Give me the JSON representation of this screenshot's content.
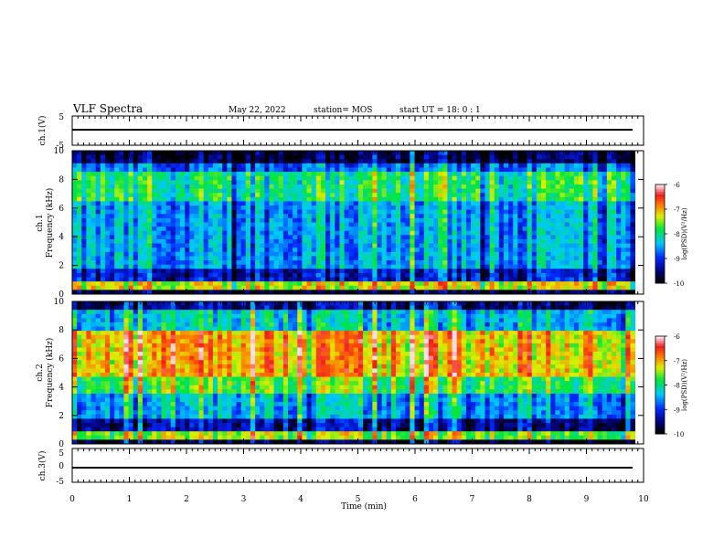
{
  "header": {
    "title": "VLF Spectra",
    "date": "May 22, 2022",
    "station": "station= MOS",
    "start_ut": "start  UT =   18: 0  : 1"
  },
  "chart_data": [
    {
      "type": "line",
      "panel": "ch1-voltage",
      "ylabel": "ch.1(V)",
      "ylim": [
        -5,
        5
      ],
      "yticks": [
        "5",
        "-5"
      ],
      "x_unit": "min",
      "xlim": [
        0,
        10
      ],
      "level": -0.3
    },
    {
      "type": "heatmap",
      "panel": "ch1-spectrogram",
      "ylabel": "ch.1 Frequency (kHz)",
      "ylabel_line1": "ch.1",
      "ylabel_line2": "Frequency (kHz)",
      "ylim": [
        0,
        10
      ],
      "yticks": [
        "0",
        "2",
        "4",
        "6",
        "8",
        "10"
      ],
      "xlim": [
        0,
        9.85
      ],
      "colorbar": {
        "label": "log(PSD)(V²/Hz)",
        "range": [
          -10,
          -6
        ],
        "ticks": [
          "-6",
          "-7",
          "-8",
          "-9",
          "-10"
        ]
      },
      "bands": [
        {
          "f": [
            0,
            0.3
          ],
          "level": -9.8
        },
        {
          "f": [
            0.3,
            1.0
          ],
          "level": -7.3
        },
        {
          "f": [
            1.0,
            1.8
          ],
          "level": -9.3
        },
        {
          "f": [
            1.8,
            6.5
          ],
          "level": -8.6
        },
        {
          "f": [
            6.5,
            8.5
          ],
          "level": -8.0
        },
        {
          "f": [
            8.5,
            9.2
          ],
          "level": -8.8
        },
        {
          "f": [
            9.2,
            10
          ],
          "level": -9.8
        }
      ]
    },
    {
      "type": "heatmap",
      "panel": "ch2-spectrogram",
      "ylabel": "ch.2 Frequency (kHz)",
      "ylabel_line1": "ch.2",
      "ylabel_line2": "Frequency (kHz)",
      "ylim": [
        0,
        10
      ],
      "yticks": [
        "0",
        "2",
        "4",
        "6",
        "8",
        "10"
      ],
      "xlim": [
        0,
        9.85
      ],
      "colorbar": {
        "label": "log(PSD)(V²/Hz)",
        "range": [
          -10,
          -6
        ],
        "ticks": [
          "-6",
          "-7",
          "-8",
          "-9",
          "-10"
        ]
      },
      "bands": [
        {
          "f": [
            0,
            0.3
          ],
          "level": -9.8
        },
        {
          "f": [
            0.3,
            1.0
          ],
          "level": -7.5
        },
        {
          "f": [
            1.0,
            1.8
          ],
          "level": -9.4
        },
        {
          "f": [
            1.8,
            3.5
          ],
          "level": -8.5
        },
        {
          "f": [
            3.5,
            4.8
          ],
          "level": -7.7
        },
        {
          "f": [
            4.8,
            8.0
          ],
          "level": -7.0
        },
        {
          "f": [
            8.0,
            9.3
          ],
          "level": -8.3
        },
        {
          "f": [
            9.3,
            10
          ],
          "level": -9.5
        }
      ]
    },
    {
      "type": "line",
      "panel": "ch3-voltage",
      "ylabel": "ch.3(V)",
      "ylim": [
        -5,
        5
      ],
      "yticks": [
        "5",
        "0",
        "-5"
      ],
      "xlim": [
        0,
        10
      ],
      "level": -0.3,
      "xlabel": "Time (min)",
      "xticks": [
        "0",
        "1",
        "2",
        "3",
        "4",
        "5",
        "6",
        "7",
        "8",
        "9",
        "10"
      ]
    }
  ]
}
